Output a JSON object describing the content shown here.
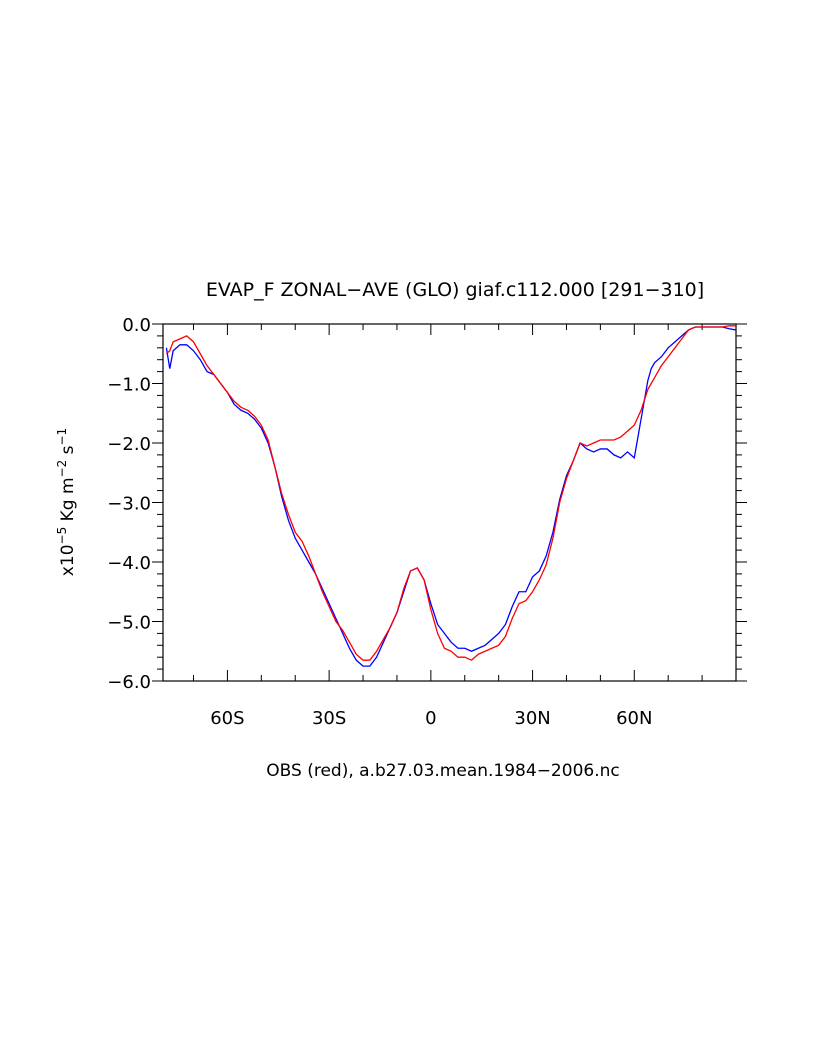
{
  "chart_data": {
    "type": "line",
    "title": "EVAP_F ZONAL−AVE (GLO) giaf.c112.000 [291−310]",
    "ylabel_parts": {
      "pre": "x10",
      "exp1": "−5",
      "mid1": " Kg m",
      "exp2": "−2",
      "mid2": " s",
      "exp3": "−1"
    },
    "xlabel": "OBS (red), a.b27.03.mean.1984−2006.nc",
    "xlim": [
      -79,
      90
    ],
    "ylim": [
      -6.0,
      0.0
    ],
    "x_ticks": [
      {
        "value": -60,
        "label": "60S"
      },
      {
        "value": -30,
        "label": "30S"
      },
      {
        "value": 0,
        "label": "0"
      },
      {
        "value": 30,
        "label": "30N"
      },
      {
        "value": 60,
        "label": "60N"
      }
    ],
    "y_ticks": [
      {
        "value": 0.0,
        "label": "0.0"
      },
      {
        "value": -1.0,
        "label": "−1.0"
      },
      {
        "value": -2.0,
        "label": "−2.0"
      },
      {
        "value": -3.0,
        "label": "−3.0"
      },
      {
        "value": -4.0,
        "label": "−4.0"
      },
      {
        "value": -5.0,
        "label": "−5.0"
      },
      {
        "value": -6.0,
        "label": "−6.0"
      }
    ],
    "grid": false,
    "series": [
      {
        "color": "#0000ff",
        "x": [
          -78,
          -77,
          -76,
          -74,
          -72,
          -70,
          -68,
          -66,
          -64,
          -62,
          -60,
          -58,
          -56,
          -54,
          -52,
          -50,
          -48,
          -46,
          -44,
          -42,
          -40,
          -38,
          -36,
          -34,
          -32,
          -30,
          -28,
          -26,
          -24,
          -22,
          -20,
          -18,
          -16,
          -14,
          -12,
          -10,
          -8,
          -6,
          -4,
          -2,
          0,
          2,
          4,
          6,
          8,
          10,
          12,
          14,
          16,
          18,
          20,
          22,
          24,
          26,
          28,
          30,
          32,
          34,
          36,
          38,
          40,
          42,
          44,
          46,
          48,
          50,
          52,
          54,
          56,
          58,
          60,
          62,
          64,
          65,
          66,
          68,
          70,
          72,
          74,
          76,
          78,
          80,
          82,
          84,
          86,
          88,
          90
        ],
        "y": [
          -0.4,
          -0.75,
          -0.45,
          -0.35,
          -0.35,
          -0.45,
          -0.6,
          -0.8,
          -0.85,
          -1.0,
          -1.15,
          -1.35,
          -1.45,
          -1.5,
          -1.6,
          -1.75,
          -2.0,
          -2.4,
          -2.9,
          -3.3,
          -3.6,
          -3.8,
          -4.0,
          -4.2,
          -4.45,
          -4.7,
          -4.95,
          -5.2,
          -5.45,
          -5.65,
          -5.75,
          -5.75,
          -5.6,
          -5.35,
          -5.1,
          -4.85,
          -4.5,
          -4.15,
          -4.1,
          -4.3,
          -4.7,
          -5.05,
          -5.2,
          -5.35,
          -5.45,
          -5.45,
          -5.5,
          -5.45,
          -5.4,
          -5.3,
          -5.2,
          -5.05,
          -4.75,
          -4.5,
          -4.5,
          -4.25,
          -4.15,
          -3.9,
          -3.5,
          -2.95,
          -2.55,
          -2.3,
          -2.0,
          -2.1,
          -2.15,
          -2.1,
          -2.1,
          -2.2,
          -2.25,
          -2.15,
          -2.25,
          -1.6,
          -0.95,
          -0.75,
          -0.65,
          -0.55,
          -0.4,
          -0.3,
          -0.2,
          -0.1,
          -0.05,
          -0.05,
          -0.05,
          -0.05,
          -0.05,
          -0.08,
          -0.1
        ]
      },
      {
        "color": "#ff0000",
        "x": [
          -78,
          -77,
          -76,
          -74,
          -72,
          -70,
          -68,
          -66,
          -64,
          -62,
          -60,
          -58,
          -56,
          -54,
          -52,
          -50,
          -48,
          -46,
          -44,
          -42,
          -40,
          -38,
          -36,
          -34,
          -32,
          -30,
          -28,
          -26,
          -24,
          -22,
          -20,
          -18,
          -16,
          -14,
          -12,
          -10,
          -8,
          -6,
          -4,
          -2,
          0,
          2,
          4,
          6,
          8,
          10,
          12,
          14,
          16,
          18,
          20,
          22,
          24,
          26,
          28,
          30,
          32,
          34,
          36,
          38,
          40,
          42,
          44,
          46,
          48,
          50,
          52,
          54,
          56,
          58,
          60,
          62,
          64,
          65,
          66,
          68,
          70,
          72,
          74,
          76,
          78,
          80,
          82,
          84,
          86,
          88,
          90
        ],
        "y": [
          -0.5,
          -0.45,
          -0.3,
          -0.25,
          -0.2,
          -0.3,
          -0.5,
          -0.7,
          -0.85,
          -1.0,
          -1.15,
          -1.3,
          -1.4,
          -1.45,
          -1.55,
          -1.7,
          -1.95,
          -2.4,
          -2.85,
          -3.2,
          -3.5,
          -3.65,
          -3.9,
          -4.2,
          -4.5,
          -4.75,
          -5.0,
          -5.15,
          -5.35,
          -5.55,
          -5.65,
          -5.65,
          -5.5,
          -5.3,
          -5.1,
          -4.85,
          -4.45,
          -4.15,
          -4.1,
          -4.3,
          -4.8,
          -5.2,
          -5.45,
          -5.5,
          -5.6,
          -5.6,
          -5.65,
          -5.55,
          -5.5,
          -5.45,
          -5.4,
          -5.25,
          -4.95,
          -4.7,
          -4.65,
          -4.5,
          -4.3,
          -4.05,
          -3.6,
          -3.0,
          -2.6,
          -2.3,
          -2.0,
          -2.05,
          -2.0,
          -1.95,
          -1.95,
          -1.95,
          -1.9,
          -1.8,
          -1.7,
          -1.45,
          -1.1,
          -1.0,
          -0.9,
          -0.7,
          -0.55,
          -0.4,
          -0.25,
          -0.1,
          -0.05,
          -0.05,
          -0.05,
          -0.05,
          -0.05,
          -0.03,
          -0.03
        ]
      }
    ]
  }
}
